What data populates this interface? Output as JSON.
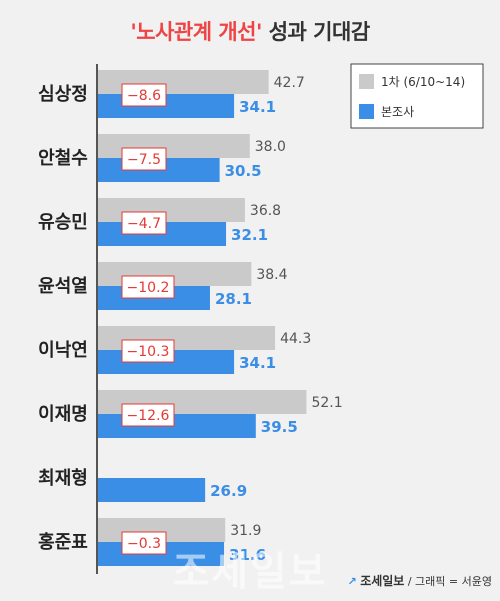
{
  "chart_data": {
    "type": "bar",
    "title_quoted": "'노사관계 개선'",
    "title_rest": "성과 기대감",
    "categories": [
      "심상정",
      "안철수",
      "유승민",
      "윤석열",
      "이낙연",
      "이재명",
      "최재형",
      "홍준표"
    ],
    "series": [
      {
        "name": "1차 (6/10~14)",
        "color": "#cacaca",
        "values": [
          42.7,
          38.0,
          36.8,
          38.4,
          44.3,
          52.1,
          null,
          31.9
        ]
      },
      {
        "name": "본조사",
        "color": "#3a8ee6",
        "values": [
          34.1,
          30.5,
          32.1,
          28.1,
          34.1,
          39.5,
          26.9,
          31.6
        ]
      }
    ],
    "changes": [
      "-8.6",
      "-7.5",
      "-4.7",
      "-10.2",
      "-10.3",
      "-12.6",
      null,
      "-0.3"
    ],
    "legend_position": "top-right",
    "grid": false,
    "xlim": [
      0,
      60
    ]
  },
  "footer": {
    "brand": "조세일보",
    "credit": "/ 그래픽 = 서윤영",
    "watermark": "조세일보"
  }
}
